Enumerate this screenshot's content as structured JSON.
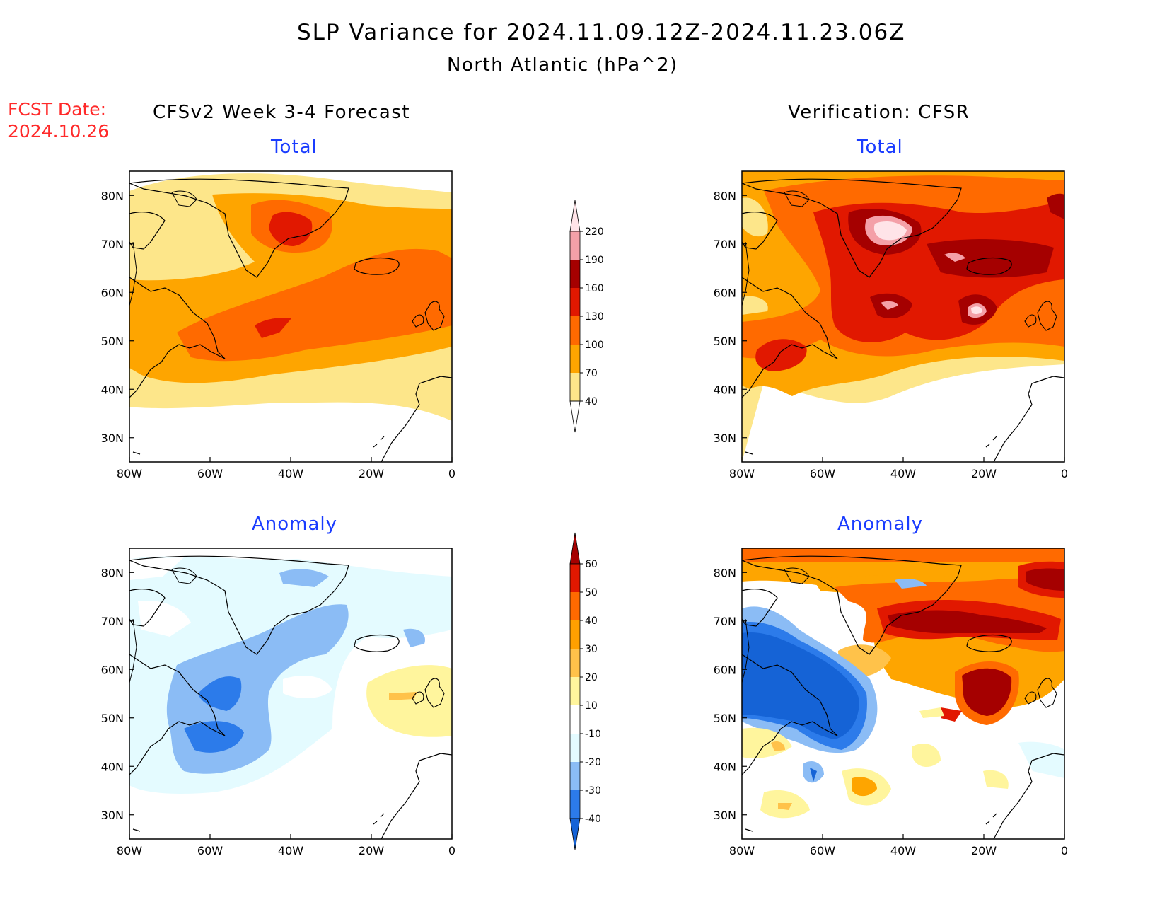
{
  "header": {
    "title": "SLP Variance for 2024.11.09.12Z-2024.11.23.06Z",
    "subtitle": "North Atlantic (hPa^2)",
    "fcst_label": "FCST Date:",
    "fcst_date": "2024.10.26",
    "left_heading": "CFSv2 Week 3-4 Forecast",
    "right_heading": "Verification: CFSR"
  },
  "panels": {
    "forecast_total": {
      "title": "Total"
    },
    "verify_total": {
      "title": "Total"
    },
    "forecast_anomaly": {
      "title": "Anomaly"
    },
    "verify_anomaly": {
      "title": "Anomaly"
    }
  },
  "axes": {
    "lat_labels": [
      "80N",
      "70N",
      "60N",
      "50N",
      "40N",
      "30N"
    ],
    "lon_labels": [
      "80W",
      "60W",
      "40W",
      "20W",
      "0"
    ],
    "lat_range": [
      25,
      85
    ],
    "lon_range": [
      -80,
      0
    ]
  },
  "colorbar_total": {
    "levels": [
      "40",
      "70",
      "100",
      "130",
      "160",
      "190",
      "220"
    ],
    "colors": [
      "#ffffff",
      "#fde68a",
      "#fea500",
      "#ff6a00",
      "#e11800",
      "#a50000",
      "#f4a0a8",
      "#ffe4e8"
    ]
  },
  "colorbar_anomaly": {
    "levels": [
      "-40",
      "-30",
      "-20",
      "-10",
      "10",
      "20",
      "30",
      "40",
      "50",
      "60"
    ],
    "colors": [
      "#1563d6",
      "#2c7bea",
      "#8bbcf5",
      "#e4fbff",
      "#ffffff",
      "#fff59d",
      "#ffc24a",
      "#ffa000",
      "#ff6a00",
      "#e11800",
      "#a50000"
    ]
  }
}
